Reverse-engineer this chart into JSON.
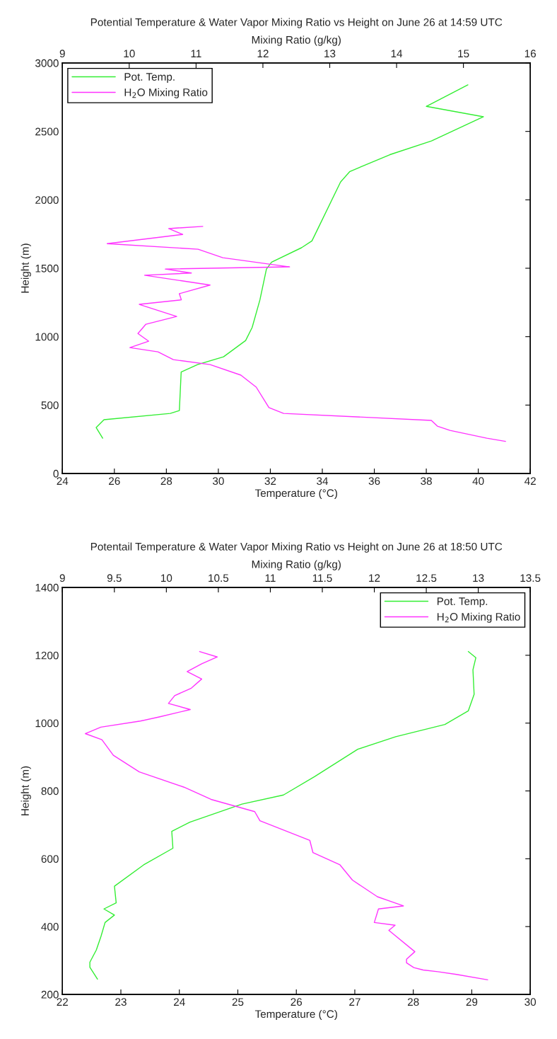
{
  "chart_data": [
    {
      "type": "line",
      "title": "Potential Temperature & Water Vapor Mixing Ratio vs Height on June 26 at 14:59 UTC",
      "xlabel": "Temperature (°C)",
      "x2label": "Mixing Ratio (g/kg)",
      "ylabel": "Height (m)",
      "xlim": [
        24,
        42
      ],
      "xticks": [
        24,
        26,
        28,
        30,
        32,
        34,
        36,
        38,
        40,
        42
      ],
      "x2lim": [
        9,
        16
      ],
      "x2ticks": [
        9,
        10,
        11,
        12,
        13,
        14,
        15,
        16
      ],
      "ylim": [
        0,
        3000
      ],
      "yticks": [
        0,
        500,
        1000,
        1500,
        2000,
        2500,
        3000
      ],
      "legend": "top left",
      "series": [
        {
          "name": "Pot. Temp.",
          "color": "#33ee33",
          "x": [
            25.55,
            25.3,
            25.6,
            28.15,
            28.5,
            28.57,
            29.2,
            30.2,
            31.05,
            31.3,
            31.6,
            31.85,
            32.05,
            33.2,
            33.6,
            33.75,
            34.7,
            35.06,
            36.6,
            38.2,
            40.2,
            38.0,
            39.6
          ],
          "values": [
            258,
            336,
            393,
            439,
            460,
            741,
            796,
            853,
            972,
            1067,
            1269,
            1494,
            1545,
            1650,
            1700,
            1758,
            2130,
            2207,
            2330,
            2430,
            2607,
            2683,
            2840
          ]
        },
        {
          "name": "H$_{2}$O Mixing Ratio",
          "color": "#ff33ff",
          "axis": "x2",
          "x": [
            15.63,
            15.35,
            14.8,
            14.61,
            14.52,
            12.31,
            12.09,
            11.9,
            11.67,
            11.21,
            10.66,
            10.43,
            10.01,
            10.29,
            10.13,
            10.25,
            10.71,
            10.15,
            10.78,
            10.75,
            11.21,
            10.23,
            10.93,
            10.54,
            12.4,
            11.4,
            11.03,
            9.67,
            10.8,
            10.59,
            11.1
          ],
          "values": [
            235,
            258,
            315,
            346,
            388,
            439,
            482,
            631,
            719,
            796,
            832,
            889,
            920,
            967,
            1023,
            1091,
            1148,
            1236,
            1269,
            1314,
            1377,
            1449,
            1465,
            1494,
            1510,
            1577,
            1639,
            1680,
            1747,
            1790,
            1806
          ]
        }
      ]
    },
    {
      "type": "line",
      "title": "Potentail Temperature & Water Vapor Mixing Ratio vs Height on June 26 at 18:50 UTC",
      "xlabel": "Temperature (°C)",
      "x2label": "Mixing Ratio (g/kg)",
      "ylabel": "Height (m)",
      "xlim": [
        22,
        30
      ],
      "xticks": [
        22,
        23,
        24,
        25,
        26,
        27,
        28,
        29,
        30
      ],
      "x2lim": [
        9,
        13.5
      ],
      "x2ticks": [
        9,
        9.5,
        10,
        10.5,
        11,
        11.5,
        12,
        12.5,
        13,
        13.5
      ],
      "ylim": [
        200,
        1400
      ],
      "yticks": [
        200,
        400,
        600,
        800,
        1000,
        1200,
        1400
      ],
      "legend": "top right",
      "series": [
        {
          "name": "Pot. Temp.",
          "color": "#33ee33",
          "x": [
            22.6,
            22.47,
            22.47,
            22.58,
            22.66,
            22.73,
            22.89,
            22.71,
            22.92,
            22.89,
            23.39,
            23.89,
            23.87,
            24.18,
            25.07,
            25.78,
            26.31,
            27.05,
            27.7,
            28.54,
            28.94,
            29.04,
            29.02,
            29.07,
            28.94
          ],
          "values": [
            245,
            280,
            295,
            331,
            371,
            412,
            434,
            452,
            470,
            519,
            582,
            631,
            681,
            708,
            761,
            788,
            842,
            923,
            960,
            996,
            1036,
            1085,
            1157,
            1193,
            1211
          ]
        },
        {
          "name": "H$_{2}$O Mixing Ratio",
          "color": "#ff33ff",
          "axis": "x2",
          "x": [
            13.09,
            12.79,
            12.61,
            12.47,
            12.38,
            12.31,
            12.31,
            12.39,
            12.14,
            12.2,
            12.0,
            12.04,
            12.28,
            12.03,
            11.79,
            11.67,
            11.41,
            11.38,
            10.9,
            10.85,
            10.43,
            10.17,
            9.74,
            9.49,
            9.38,
            9.22,
            9.37,
            9.75,
            9.93,
            10.23,
            10.02,
            10.08,
            10.24,
            10.34,
            10.2,
            10.34,
            10.49,
            10.32
          ],
          "values": [
            243,
            259,
            267,
            272,
            279,
            293,
            304,
            326,
            389,
            404,
            412,
            452,
            461,
            488,
            537,
            582,
            618,
            654,
            712,
            739,
            775,
            811,
            856,
            905,
            951,
            969,
            988,
            1006,
            1018,
            1040,
            1058,
            1081,
            1103,
            1130,
            1152,
            1175,
            1195,
            1211
          ]
        }
      ]
    }
  ]
}
